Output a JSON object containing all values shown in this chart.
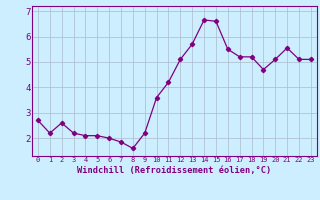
{
  "x": [
    0,
    1,
    2,
    3,
    4,
    5,
    6,
    7,
    8,
    9,
    10,
    11,
    12,
    13,
    14,
    15,
    16,
    17,
    18,
    19,
    20,
    21,
    22,
    23
  ],
  "y": [
    2.7,
    2.2,
    2.6,
    2.2,
    2.1,
    2.1,
    2.0,
    1.85,
    1.6,
    2.2,
    3.6,
    4.2,
    5.1,
    5.7,
    6.65,
    6.6,
    5.5,
    5.2,
    5.2,
    4.7,
    5.1,
    5.55,
    5.1,
    5.1
  ],
  "line_color": "#800080",
  "marker": "D",
  "marker_size": 2.2,
  "bg_color": "#cceeff",
  "grid_color": "#aabbcc",
  "xlabel": "Windchill (Refroidissement éolien,°C)",
  "ylabel": "",
  "ylim": [
    1.3,
    7.2
  ],
  "yticks": [
    2,
    3,
    4,
    5,
    6,
    7
  ],
  "title": "",
  "font_color": "#800080",
  "tick_fontsize": 5.0,
  "xlabel_fontsize": 6.2
}
